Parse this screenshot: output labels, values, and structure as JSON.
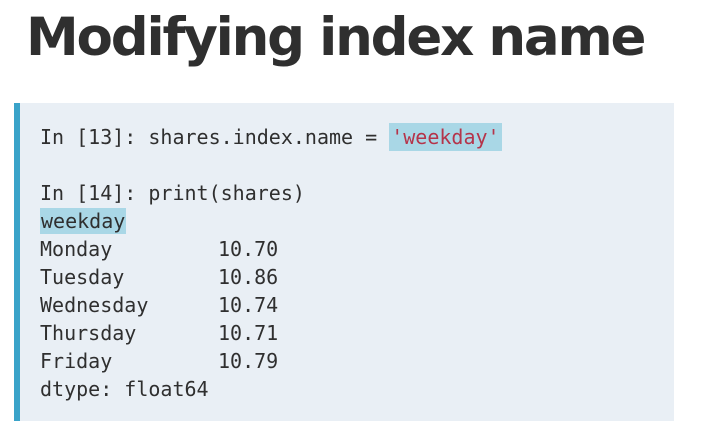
{
  "slide": {
    "title": "Modifying index name"
  },
  "code": {
    "cell13": {
      "prompt": "In [13]:",
      "statement": "shares.index.name =",
      "value": "'weekday'"
    },
    "cell14": {
      "prompt": "In [14]:",
      "statement": "print(shares)"
    },
    "output": {
      "index_name": "weekday",
      "rows": [
        {
          "label": "Monday",
          "value": "10.70"
        },
        {
          "label": "Tuesday",
          "value": "10.86"
        },
        {
          "label": "Wednesday",
          "value": "10.74"
        },
        {
          "label": "Thursday",
          "value": "10.71"
        },
        {
          "label": "Friday",
          "value": "10.79"
        }
      ],
      "dtype": "dtype: float64"
    }
  },
  "colors": {
    "accent_bar": "#3aa3c9",
    "highlight": "#a9d7e6",
    "string": "#b5344a",
    "code_background": "#e9eff5"
  }
}
